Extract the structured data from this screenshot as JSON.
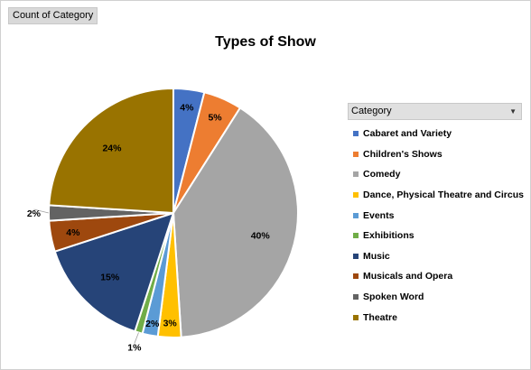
{
  "field_button": "Count of Category",
  "legend_header": "Category",
  "chart_data": {
    "type": "pie",
    "title": "Types of Show",
    "categories": [
      "Cabaret and Variety",
      "Children's Shows",
      "Comedy",
      "Dance, Physical Theatre and Circus",
      "Events",
      "Exhibitions",
      "Music",
      "Musicals and Opera",
      "Spoken Word",
      "Theatre"
    ],
    "values": [
      4,
      5,
      40,
      3,
      2,
      1,
      15,
      4,
      2,
      24
    ],
    "labels": [
      "4%",
      "5%",
      "40%",
      "3%",
      "2%",
      "1%",
      "15%",
      "4%",
      "2%",
      "24%"
    ],
    "colors": [
      "#4472C4",
      "#ED7D31",
      "#A5A5A5",
      "#FFC000",
      "#5B9BD5",
      "#70AD47",
      "#264478",
      "#9E480E",
      "#636363",
      "#997300"
    ],
    "legend_position": "right"
  }
}
